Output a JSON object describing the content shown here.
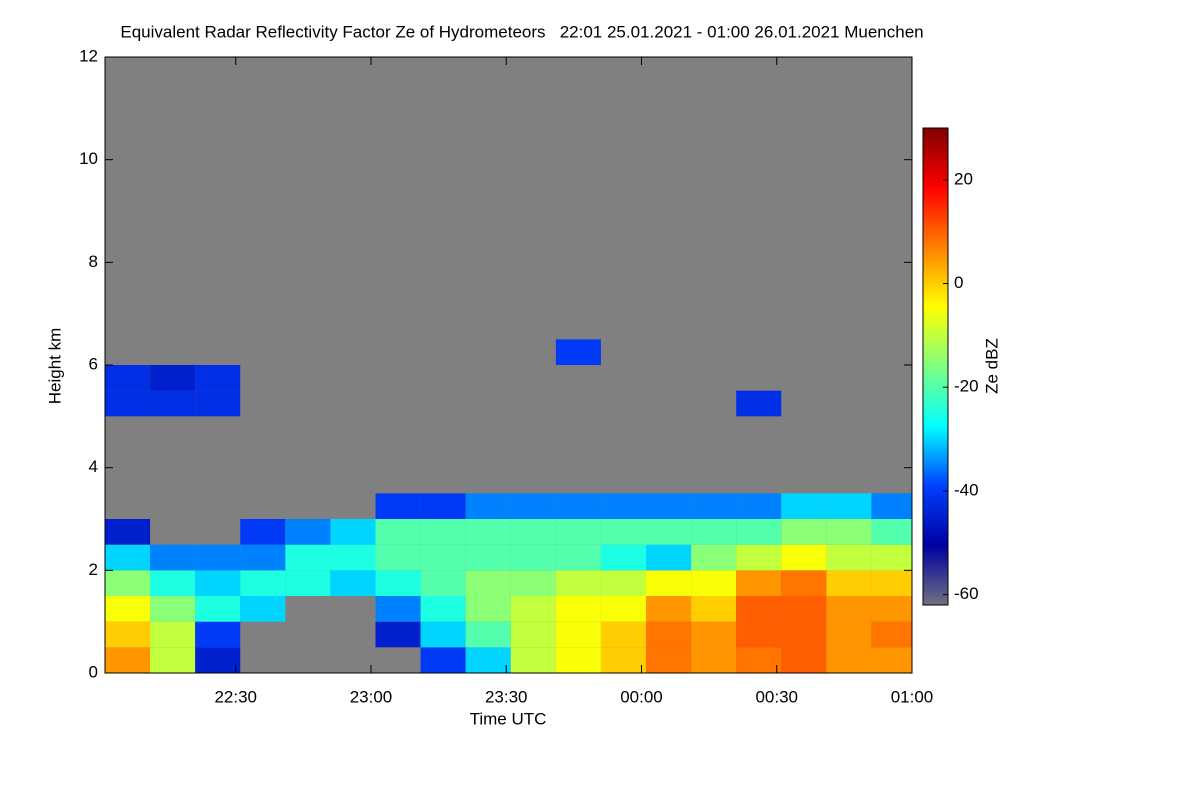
{
  "chart_data": {
    "type": "heatmap",
    "title": "Equivalent Radar Reflectivity Factor Ze of Hydrometeors   22:01 25.01.2021 - 01:00 26.01.2021 Muenchen",
    "x_label": "Time UTC",
    "y_label": "Height km",
    "colorbar_label": "Ze dBZ",
    "xlim": [
      "22:01",
      "01:00"
    ],
    "xticks": [
      "22:30",
      "23:00",
      "23:30",
      "00:00",
      "00:30",
      "01:00"
    ],
    "ylim": [
      0,
      12
    ],
    "yticks": [
      0,
      2,
      4,
      6,
      8,
      10,
      12
    ],
    "zlim": [
      -62,
      30
    ],
    "zticks": [
      -60,
      -40,
      -20,
      0,
      20
    ],
    "colormap": [
      "#707080",
      "#0000a0",
      "#0040ff",
      "#00ffff",
      "#80ff80",
      "#ffff00",
      "#ff8000",
      "#ff0000",
      "#800000"
    ],
    "background_color": "#808080",
    "x": [
      "22:06",
      "22:16",
      "22:26",
      "22:36",
      "22:46",
      "22:56",
      "23:06",
      "23:16",
      "23:26",
      "23:36",
      "23:46",
      "23:56",
      "00:06",
      "00:16",
      "00:26",
      "00:36",
      "00:46",
      "00:56"
    ],
    "y": [
      0.25,
      0.75,
      1.25,
      1.75,
      2.25,
      2.75,
      3.25,
      3.75,
      4.25,
      4.75,
      5.25,
      5.75,
      6.25
    ],
    "z": [
      [
        5,
        -10,
        -45,
        null,
        null,
        null,
        null,
        -40,
        -30,
        -10,
        -5,
        0,
        8,
        5,
        8,
        10,
        5,
        5
      ],
      [
        0,
        -10,
        -40,
        null,
        null,
        null,
        -45,
        -30,
        -20,
        -10,
        -5,
        0,
        8,
        5,
        10,
        10,
        5,
        8
      ],
      [
        -5,
        -15,
        -25,
        -30,
        null,
        null,
        -35,
        -25,
        -15,
        -10,
        -5,
        -5,
        5,
        0,
        10,
        10,
        5,
        5
      ],
      [
        -15,
        -25,
        -30,
        -25,
        -25,
        -30,
        -25,
        -20,
        -15,
        -15,
        -10,
        -10,
        -5,
        -5,
        5,
        8,
        0,
        0
      ],
      [
        -30,
        -35,
        -35,
        -35,
        -25,
        -25,
        -20,
        -20,
        -20,
        -20,
        -20,
        -25,
        -30,
        -15,
        -10,
        -5,
        -10,
        -10
      ],
      [
        -45,
        null,
        null,
        -40,
        -35,
        -30,
        -20,
        -20,
        -20,
        -20,
        -20,
        -20,
        -20,
        -20,
        -20,
        -15,
        -15,
        -20
      ],
      [
        null,
        null,
        null,
        null,
        null,
        null,
        -40,
        -40,
        -35,
        -35,
        -35,
        -35,
        -35,
        -35,
        -35,
        -30,
        -30,
        -35
      ],
      [
        null,
        null,
        null,
        null,
        null,
        null,
        null,
        null,
        null,
        null,
        null,
        null,
        null,
        null,
        null,
        null,
        null,
        null
      ],
      [
        null,
        null,
        null,
        null,
        null,
        null,
        null,
        null,
        null,
        null,
        null,
        null,
        null,
        null,
        null,
        null,
        null,
        null
      ],
      [
        null,
        null,
        null,
        null,
        null,
        null,
        null,
        null,
        null,
        null,
        null,
        null,
        null,
        null,
        null,
        null,
        null,
        null
      ],
      [
        -42,
        -42,
        -42,
        null,
        null,
        null,
        null,
        null,
        null,
        null,
        null,
        null,
        null,
        null,
        -42,
        null,
        null,
        null
      ],
      [
        -42,
        -45,
        -42,
        null,
        null,
        null,
        null,
        null,
        null,
        null,
        null,
        null,
        null,
        null,
        null,
        null,
        null,
        null
      ],
      [
        null,
        null,
        null,
        null,
        null,
        null,
        null,
        null,
        null,
        null,
        -40,
        null,
        null,
        null,
        null,
        null,
        null,
        null
      ]
    ]
  }
}
